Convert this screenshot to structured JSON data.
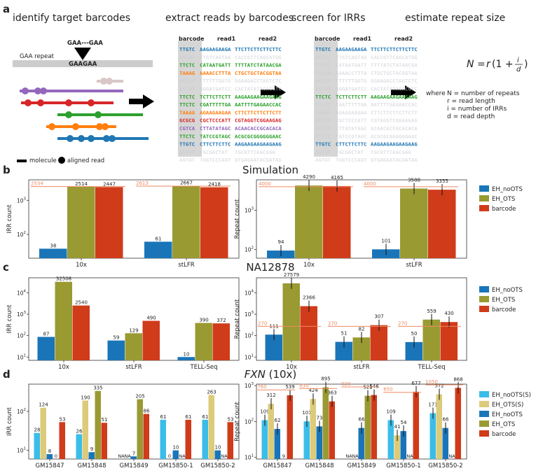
{
  "panel_a": {
    "label": "a",
    "step_titles": [
      "identify target barcodes",
      "extract reads by barcodes",
      "screen for IRRs",
      "estimate repeat size"
    ],
    "gaa_repeat_label": "GAA repeat",
    "probe_label": "GAA---GAA",
    "ref_seq": "GAAGAA",
    "legend_molecule": "molecule",
    "legend_read": "aligned read",
    "col_headers": [
      "barcode",
      "read1",
      "read2"
    ],
    "reads": [
      {
        "bc": "TTGTC",
        "r1": "AAGAAGAAGA",
        "r2": "TTCTTCTTCTTCTTC",
        "color": "#1f77b4",
        "faded": false
      },
      {
        "bc": "AGTAT",
        "r1": "TTGTCAGTAG",
        "r2": "CACCGTTCAGCATGG",
        "color": "#b8bcc8",
        "faded": true
      },
      {
        "bc": "TTCTC",
        "r1": "CATAATGATT",
        "r2": "TTTTATCTATAACGA",
        "color": "#2ca02c",
        "faded": false
      },
      {
        "bc": "TAAAG",
        "r1": "AAAACCTTTA",
        "r2": "CTGCTGCTACGGTAA",
        "color": "#ff7f0e",
        "faded": false
      },
      {
        "bc": "AGTAT",
        "r1": "TTTTTTGGTG",
        "r2": "GGAAGACCTAGTCTC",
        "color": "#b8bcc8",
        "faded": true
      },
      {
        "bc": "AGTAT",
        "r1": "GGGATGATCC",
        "r2": "CACTATATACACGTC",
        "color": "#b8bcc8",
        "faded": true
      },
      {
        "bc": "TTCTC",
        "r1": "TCTTCTTCTT",
        "r2": "AAGAAGAAGAAGAAG",
        "color": "#2ca02c",
        "faded": false
      },
      {
        "bc": "TTCTC",
        "r1": "CGATTTTTGA",
        "r2": "AATTTTGAGAACCAC",
        "color": "#2ca02c",
        "faded": false
      },
      {
        "bc": "TAAAG",
        "r1": "AGAAGAAGAA",
        "r2": "CTTCTTCTTCTTCTT",
        "color": "#ff7f0e",
        "faded": false
      },
      {
        "bc": "GCGCG",
        "r1": "CGCTCCCATT",
        "r2": "CGTAGGTCGGAAGAG",
        "color": "#d62728",
        "faded": false
      },
      {
        "bc": "CGTCA",
        "r1": "CTTATATAGC",
        "r2": "ACAACACCGCACACA",
        "color": "#9467bd",
        "faded": false
      },
      {
        "bc": "TTCTC",
        "r1": "TATCCGTAGC",
        "r2": "ACGCGCGGGGGGAAC",
        "color": "#2ca02c",
        "faded": false
      },
      {
        "bc": "TTGTC",
        "r1": "CTTCTTCTTC",
        "r2": "AAGAAGAAGAAGAAG",
        "color": "#1f77b4",
        "faded": false
      },
      {
        "bc": "AGTAT",
        "r1": "TGCGACTAT",
        "r2": "TGCGTTCAGCGGG",
        "color": "#b8bcc8",
        "faded": true
      },
      {
        "bc": "AGTAT",
        "r1": "TGGTCCCAGT",
        "r2": "GTGAGAATACGATAG",
        "color": "#b8bcc8",
        "faded": true
      }
    ],
    "screen_visible_rows": [
      0,
      6,
      12
    ],
    "formula": "N = r(1 + i/d)",
    "where_label": "where",
    "definitions": [
      "N = number of repeats",
      "r = read length",
      "i = number of IRRs",
      "d = read depth"
    ]
  },
  "sections": {
    "b": {
      "label": "b",
      "title": "Simulation"
    },
    "c": {
      "label": "c",
      "title": "NA12878"
    },
    "d": {
      "label": "d",
      "title_italic": "FXN",
      "title_rest": " (10x)"
    }
  },
  "legends": {
    "three": [
      {
        "name": "EH_noOTS",
        "color": "#1a75b8"
      },
      {
        "name": "EH_OTS",
        "color": "#999a32"
      },
      {
        "name": "barcode",
        "color": "#d03b1a"
      }
    ],
    "five": [
      {
        "name": "EH_noOTS(S)",
        "color": "#3bbde9"
      },
      {
        "name": "EH_OTS(S)",
        "color": "#dccb7a"
      },
      {
        "name": "EH_noOTS",
        "color": "#1a75b8"
      },
      {
        "name": "EH_OTS",
        "color": "#999a32"
      },
      {
        "name": "barcode",
        "color": "#d03b1a"
      }
    ]
  },
  "chart_data": [
    {
      "id": "b_irr",
      "type": "bar",
      "ylabel": "IRR count",
      "yscale": "log",
      "ylim": [
        20,
        4000
      ],
      "categories": [
        "10x",
        "stLFR"
      ],
      "series": [
        {
          "name": "EH_noOTS",
          "values": [
            38,
            61
          ],
          "labels": [
            "38",
            "61"
          ]
        },
        {
          "name": "EH_OTS",
          "values": [
            2514,
            2667
          ],
          "labels": [
            "2514",
            "2667"
          ]
        },
        {
          "name": "barcode",
          "values": [
            2447,
            2418
          ],
          "labels": [
            "2447",
            "2418"
          ]
        }
      ],
      "truth": [
        2534,
        2613
      ]
    },
    {
      "id": "b_rep",
      "type": "bar",
      "ylabel": "Repeat count",
      "yscale": "log",
      "ylim": [
        60,
        6000
      ],
      "categories": [
        "10x",
        "stLFR"
      ],
      "series": [
        {
          "name": "EH_noOTS",
          "values": [
            94,
            101
          ],
          "labels": [
            "94",
            "101"
          ]
        },
        {
          "name": "EH_OTS",
          "values": [
            4290,
            3588
          ],
          "labels": [
            "4290",
            "3588"
          ]
        },
        {
          "name": "barcode",
          "values": [
            4165,
            3355
          ],
          "labels": [
            "4165",
            "3355"
          ]
        }
      ],
      "truth": [
        4000,
        4000
      ]
    },
    {
      "id": "c_irr",
      "type": "bar",
      "ylabel": "IRR count",
      "yscale": "log",
      "ylim": [
        7,
        50000
      ],
      "categories": [
        "10x",
        "stLFR",
        "TELL-Seq"
      ],
      "series": [
        {
          "name": "EH_noOTS",
          "values": [
            87,
            59,
            10
          ],
          "labels": [
            "87",
            "59",
            "10"
          ]
        },
        {
          "name": "EH_OTS",
          "values": [
            32508,
            129,
            390
          ],
          "labels": [
            "32508",
            "129",
            "390"
          ]
        },
        {
          "name": "barcode",
          "values": [
            2540,
            490,
            372
          ],
          "labels": [
            "2540",
            "490",
            "372"
          ]
        }
      ]
    },
    {
      "id": "c_rep",
      "type": "bar",
      "ylabel": "Repeat count",
      "yscale": "log",
      "ylim": [
        7,
        50000
      ],
      "categories": [
        "10x",
        "stLFR",
        "TELL-Seq"
      ],
      "series": [
        {
          "name": "EH_noOTS",
          "values": [
            111,
            51,
            50
          ],
          "labels": [
            "111",
            "51",
            "50"
          ]
        },
        {
          "name": "EH_OTS",
          "values": [
            27579,
            82,
            559
          ],
          "labels": [
            "27579",
            "82",
            "559"
          ]
        },
        {
          "name": "barcode",
          "values": [
            2366,
            307,
            430
          ],
          "labels": [
            "2366",
            "307",
            "430"
          ]
        }
      ],
      "truth": [
        270,
        270,
        270
      ]
    },
    {
      "id": "d_irr",
      "type": "bar",
      "ylabel": "IRR count",
      "yscale": "log",
      "ylim": [
        6,
        500
      ],
      "categories": [
        "GM15847",
        "GM15848",
        "GM15849",
        "GM15850-1",
        "GM15850-2"
      ],
      "series": [
        {
          "name": "EH_noOTS(S)",
          "values": [
            28,
            26,
            null,
            61,
            61
          ],
          "labels": [
            "28",
            "26",
            "NA",
            "61",
            "61"
          ]
        },
        {
          "name": "EH_OTS(S)",
          "values": [
            124,
            190,
            null,
            null,
            263
          ],
          "labels": [
            "124",
            "190",
            "NA",
            "0",
            "263"
          ]
        },
        {
          "name": "EH_noOTS",
          "values": [
            8,
            9,
            7,
            10,
            10
          ],
          "labels": [
            "8",
            "9",
            "7",
            "10",
            "10"
          ]
        },
        {
          "name": "EH_OTS",
          "values": [
            null,
            335,
            205,
            null,
            null
          ],
          "labels": [
            "0",
            "335",
            "205",
            "NA",
            "NA"
          ]
        },
        {
          "name": "barcode",
          "values": [
            53,
            51,
            86,
            61,
            53
          ],
          "labels": [
            "53",
            "51",
            "86",
            "61",
            "53"
          ]
        }
      ]
    },
    {
      "id": "d_rep",
      "type": "bar",
      "ylabel": "Repeat count",
      "yscale": "log",
      "ylim": [
        9,
        1100
      ],
      "categories": [
        "GM15847",
        "GM15848",
        "GM15849",
        "GM15850-1",
        "GM15850-2"
      ],
      "series": [
        {
          "name": "EH_noOTS(S)",
          "values": [
            109,
            101,
            null,
            109,
            171
          ],
          "labels": [
            "109",
            "101",
            "NA",
            "109",
            "171"
          ]
        },
        {
          "name": "EH_OTS(S)",
          "values": [
            312,
            424,
            null,
            41,
            572
          ],
          "labels": [
            "312",
            "424",
            "NA",
            "41",
            "572"
          ]
        },
        {
          "name": "EH_noOTS",
          "values": [
            62,
            73,
            66,
            54,
            66
          ],
          "labels": [
            "62",
            "73",
            "66",
            "54",
            "66"
          ]
        },
        {
          "name": "EH_OTS",
          "values": [
            9,
            895,
            521,
            null,
            null
          ],
          "labels": [
            "9",
            "895",
            "521",
            "NA",
            "NA"
          ]
        },
        {
          "name": "barcode",
          "values": [
            539,
            363,
            546,
            677,
            868
          ],
          "labels": [
            "539",
            "363",
            "546",
            "677",
            "868"
          ]
        }
      ],
      "truth": [
        760,
        830,
        920,
        650,
        1050
      ]
    }
  ]
}
